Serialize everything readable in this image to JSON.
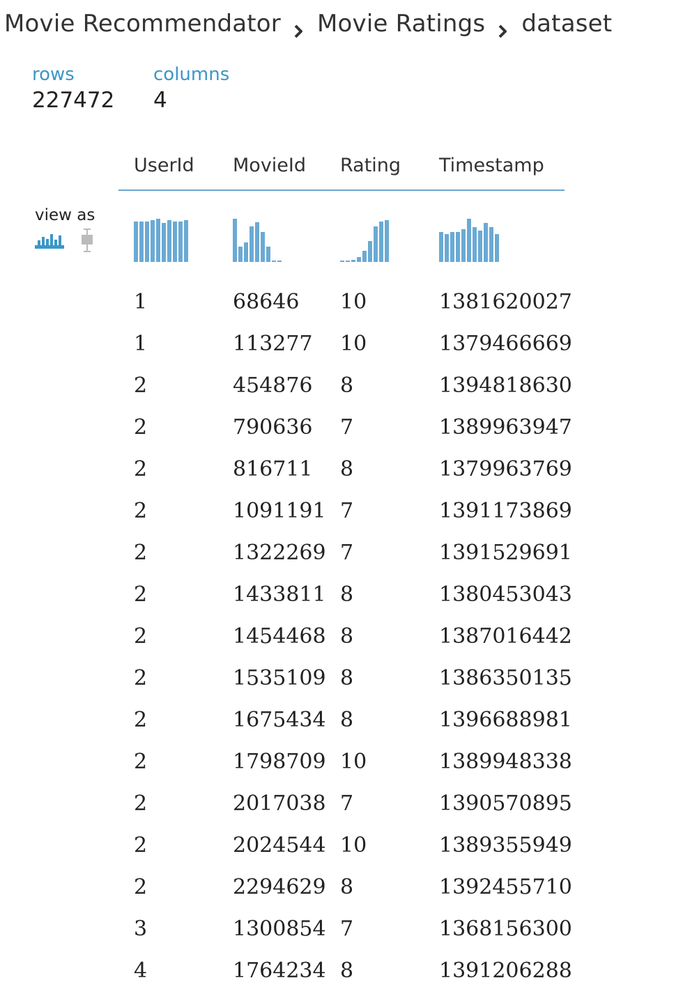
{
  "breadcrumb": {
    "items": [
      "Movie Recommendator",
      "Movie Ratings",
      "dataset"
    ],
    "separator_icon": "chevron-right-icon"
  },
  "stats": {
    "rows_label": "rows",
    "rows_value": "227472",
    "columns_label": "columns",
    "columns_value": "4"
  },
  "view_as": {
    "label": "view as",
    "icons": [
      "histogram-icon",
      "boxplot-icon"
    ],
    "active": "histogram-icon"
  },
  "colors": {
    "accent": "#3c97c7",
    "bar": "#6aaad4",
    "header_rule": "#6aa6cf"
  },
  "table": {
    "columns": [
      "UserId",
      "MovieId",
      "Rating",
      "Timestamp"
    ],
    "histograms": [
      [
        0.93,
        0.93,
        0.93,
        0.97,
        1.0,
        0.9,
        0.97,
        0.93,
        0.93,
        0.97
      ],
      [
        1.0,
        0.35,
        0.45,
        0.82,
        0.92,
        0.7,
        0.35,
        0.03,
        0.03
      ],
      [
        0.03,
        0.03,
        0.05,
        0.12,
        0.25,
        0.48,
        0.82,
        0.93,
        0.97
      ],
      [
        0.7,
        0.65,
        0.7,
        0.7,
        0.75,
        1.0,
        0.8,
        0.72,
        0.9,
        0.8,
        0.65
      ]
    ],
    "rows": [
      [
        "1",
        "68646",
        "10",
        "1381620027"
      ],
      [
        "1",
        "113277",
        "10",
        "1379466669"
      ],
      [
        "2",
        "454876",
        "8",
        "1394818630"
      ],
      [
        "2",
        "790636",
        "7",
        "1389963947"
      ],
      [
        "2",
        "816711",
        "8",
        "1379963769"
      ],
      [
        "2",
        "1091191",
        "7",
        "1391173869"
      ],
      [
        "2",
        "1322269",
        "7",
        "1391529691"
      ],
      [
        "2",
        "1433811",
        "8",
        "1380453043"
      ],
      [
        "2",
        "1454468",
        "8",
        "1387016442"
      ],
      [
        "2",
        "1535109",
        "8",
        "1386350135"
      ],
      [
        "2",
        "1675434",
        "8",
        "1396688981"
      ],
      [
        "2",
        "1798709",
        "10",
        "1389948338"
      ],
      [
        "2",
        "2017038",
        "7",
        "1390570895"
      ],
      [
        "2",
        "2024544",
        "10",
        "1389355949"
      ],
      [
        "2",
        "2294629",
        "8",
        "1392455710"
      ],
      [
        "3",
        "1300854",
        "7",
        "1368156300"
      ],
      [
        "4",
        "1764234",
        "8",
        "1391206288"
      ]
    ]
  }
}
